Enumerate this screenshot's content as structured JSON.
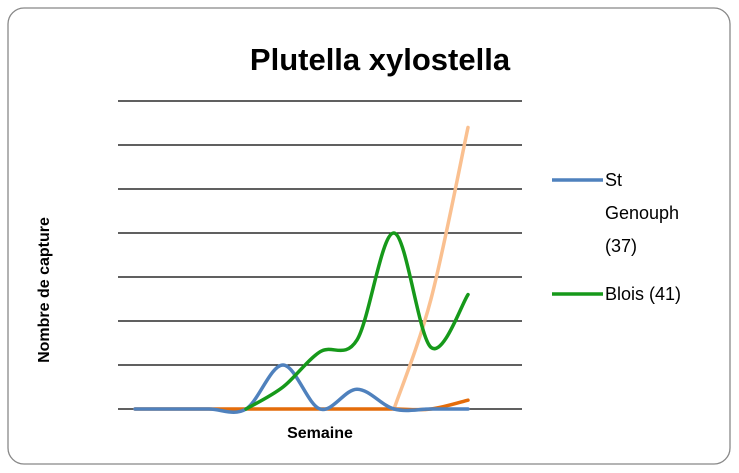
{
  "chart_data": {
    "type": "line",
    "title": "Plutella xylostella",
    "ylabel": "Nombre de capture",
    "xlabel": "Semaine",
    "categories": [
      null,
      null,
      null,
      null,
      null,
      null,
      null,
      null,
      null,
      null
    ],
    "ylim": [
      0,
      7
    ],
    "yticks": [
      0,
      1,
      2,
      3,
      4,
      5,
      6,
      7
    ],
    "grid": true,
    "smooth": true,
    "legend": "right",
    "series": [
      {
        "name": "St Genouph (37)",
        "color": "#4f81bd",
        "values": [
          0,
          0,
          0,
          0,
          1,
          0,
          0.45,
          0,
          0,
          0
        ]
      },
      {
        "name": "Blois (41)",
        "color": "#16991a",
        "values": [
          null,
          null,
          null,
          0,
          0.5,
          1.3,
          1.57,
          4,
          1.4,
          2.6
        ]
      },
      {
        "color": "#fac090",
        "values": [
          null,
          null,
          null,
          null,
          null,
          null,
          null,
          0,
          2.5,
          6.4
        ]
      },
      {
        "color": "#e46c0a",
        "values": [
          0,
          0,
          0,
          0,
          0,
          0,
          0,
          0,
          0,
          0.2
        ]
      }
    ]
  }
}
